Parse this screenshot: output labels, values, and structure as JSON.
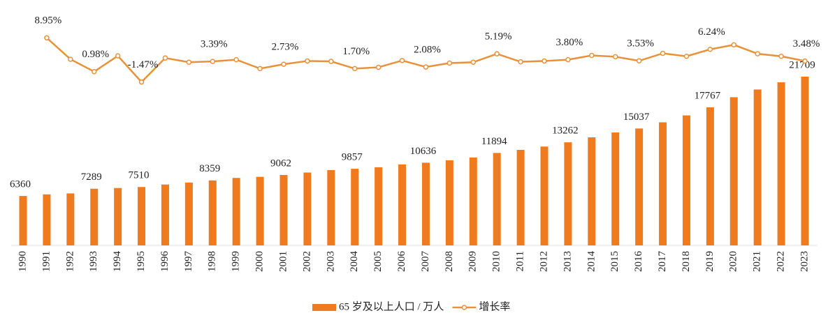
{
  "chart_data": {
    "type": "bar+line",
    "categories": [
      "1990",
      "1991",
      "1992",
      "1993",
      "1994",
      "1995",
      "1996",
      "1997",
      "1998",
      "1999",
      "2000",
      "2001",
      "2002",
      "2003",
      "2004",
      "2005",
      "2006",
      "2007",
      "2008",
      "2009",
      "2010",
      "2011",
      "2012",
      "2013",
      "2014",
      "2015",
      "2016",
      "2017",
      "2018",
      "2019",
      "2020",
      "2021",
      "2022",
      "2023"
    ],
    "series": [
      {
        "name": "65 岁及以上人口 / 万人",
        "type": "bar",
        "color": "#f07a1e",
        "values": [
          6360,
          6565,
          6688,
          7289,
          7382,
          7510,
          7832,
          8085,
          8359,
          8679,
          8821,
          9062,
          9377,
          9692,
          9857,
          10055,
          10419,
          10636,
          10956,
          11307,
          11894,
          12288,
          12714,
          13262,
          13902,
          14524,
          15037,
          15831,
          16724,
          17767,
          19064,
          20056,
          20978,
          21709
        ],
        "value_labels": [
          "6360",
          null,
          null,
          "7289",
          null,
          "7510",
          null,
          null,
          "8359",
          null,
          null,
          "9062",
          null,
          null,
          "9857",
          null,
          null,
          "10636",
          null,
          null,
          "11894",
          null,
          null,
          "13262",
          null,
          null,
          "15037",
          null,
          null,
          "17767",
          null,
          null,
          null,
          "21709"
        ]
      },
      {
        "name": "增长率",
        "type": "line",
        "axis": "y2",
        "color": "#e8913a",
        "values": [
          null,
          8.95,
          3.9,
          0.98,
          4.7,
          -1.47,
          4.2,
          3.2,
          3.39,
          3.8,
          1.7,
          2.73,
          3.5,
          3.4,
          1.7,
          2.0,
          3.6,
          2.08,
          3.0,
          3.2,
          5.19,
          3.3,
          3.5,
          3.8,
          4.8,
          4.5,
          3.53,
          5.3,
          4.6,
          6.24,
          7.3,
          5.2,
          4.6,
          3.48
        ],
        "value_labels": [
          null,
          "8.95%",
          null,
          "0.98%",
          null,
          "-1.47%",
          null,
          null,
          "3.39%",
          null,
          null,
          "2.73%",
          null,
          null,
          "1.70%",
          null,
          null,
          "2.08%",
          null,
          null,
          "5.19%",
          null,
          null,
          "3.80%",
          null,
          null,
          "3.53%",
          null,
          null,
          "6.24%",
          null,
          null,
          null,
          "3.48%"
        ]
      }
    ],
    "ylim": [
      0,
      30000
    ],
    "y2lim": [
      -40,
      15
    ],
    "grid": false,
    "legend": "bottom"
  }
}
